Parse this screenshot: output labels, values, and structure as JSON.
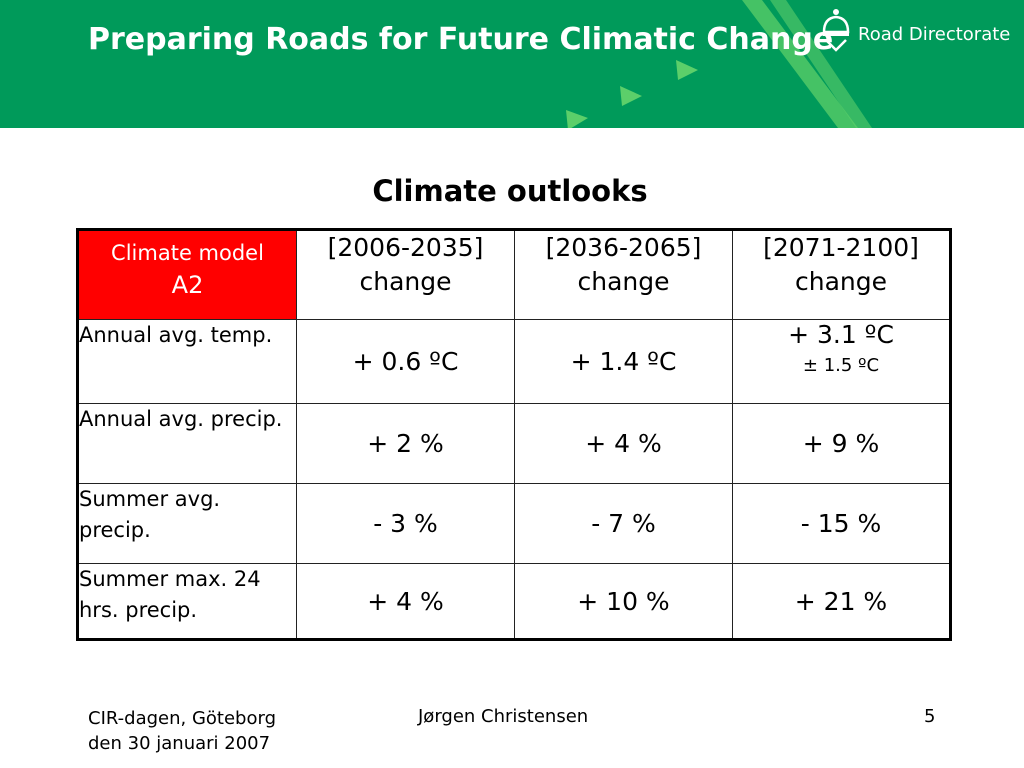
{
  "header": {
    "title": "Preparing Roads for Future Climatic Change",
    "logo_text": "Road Directorate",
    "logo_icon": "crown-icon",
    "background_color": "#009a5a"
  },
  "main": {
    "section_title": "Climate outlooks",
    "table": {
      "corner": {
        "line1": "Climate model",
        "line2": "A2",
        "background_color": "#ff0000"
      },
      "columns": [
        {
          "range": "[2006-2035]",
          "label": "change"
        },
        {
          "range": "[2036-2065]",
          "label": "change"
        },
        {
          "range": "[2071-2100]",
          "label": "change"
        }
      ],
      "rows": [
        {
          "label": "Annual avg. temp.",
          "values": [
            "+ 0.6 ºC",
            "+ 1.4 ºC",
            "+ 3.1 ºC"
          ],
          "note": "± 1.5 ºC"
        },
        {
          "label": "Annual avg. precip.",
          "values": [
            "+ 2 %",
            "+ 4 %",
            "+ 9 %"
          ]
        },
        {
          "label": "Summer avg. precip.",
          "values": [
            "-  3 %",
            "-  7 %",
            "-  15 %"
          ]
        },
        {
          "label": "Summer max. 24 hrs. precip.",
          "values": [
            "+ 4 %",
            "+ 10 %",
            "+ 21 %"
          ]
        }
      ]
    }
  },
  "footer": {
    "left": "CIR-dagen, Göteborg den 30 januari 2007",
    "center": "Jørgen Christensen",
    "page_number": "5"
  }
}
